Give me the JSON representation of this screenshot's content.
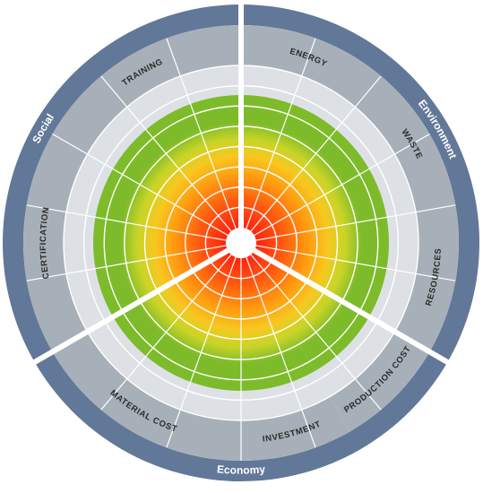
{
  "groups": [
    {
      "label": "Social",
      "start_deg": 240,
      "end_deg": 360,
      "label_deg": 300
    },
    {
      "label": "Environment",
      "start_deg": 0,
      "end_deg": 120,
      "label_deg": 60
    },
    {
      "label": "Economy",
      "start_deg": 120,
      "end_deg": 240,
      "label_deg": 180
    }
  ],
  "categories": [
    {
      "label": "ENERGY",
      "start_deg": 0,
      "end_deg": 40,
      "score": 0.85
    },
    {
      "label": "WASTE",
      "start_deg": 40,
      "end_deg": 80,
      "score": 0.85
    },
    {
      "label": "RESOURCES",
      "start_deg": 80,
      "end_deg": 120,
      "score": 0.85
    },
    {
      "label": "PRODUCTION COST",
      "start_deg": 120,
      "end_deg": 150,
      "score": 0.85
    },
    {
      "label": "INVESTMENT",
      "start_deg": 150,
      "end_deg": 180,
      "score": 0.85
    },
    {
      "label": "MATERIAL COST",
      "start_deg": 180,
      "end_deg": 240,
      "score": 0.85
    },
    {
      "label": "CERTIFICATION",
      "start_deg": 240,
      "end_deg": 300,
      "score": 0.85
    },
    {
      "label": "TRAINING",
      "start_deg": 300,
      "end_deg": 360,
      "score": 0.85
    }
  ],
  "rings": 8,
  "colors": {
    "outer_band": "#627898",
    "category_band": "#a7b0b8",
    "inner_bg": "#dde1e6",
    "grid": "#ffffff",
    "divider": "#ffffff",
    "gradient": [
      "#ff1c10",
      "#ff5a10",
      "#ff9a10",
      "#f7c820",
      "#c8d428",
      "#7dbb2a"
    ]
  }
}
